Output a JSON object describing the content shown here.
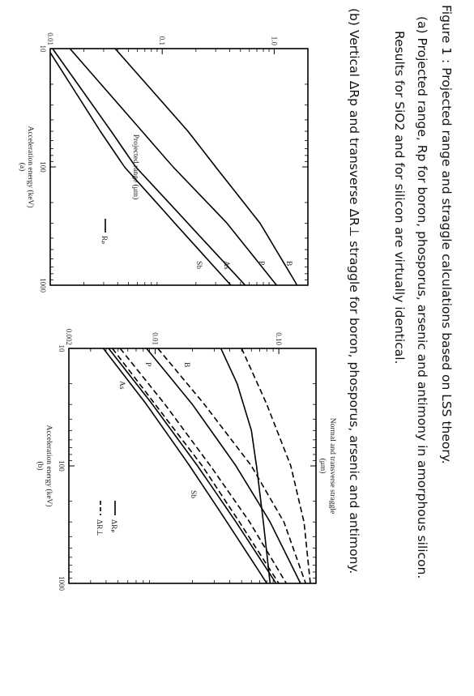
{
  "caption": {
    "title": "Figure 1 : Projected range and straggle calculations based on LSS theory.",
    "item_a_line1": "(a)  Projected range, Rp for boron, phosporus, arsenic and antimony in amorphous silicon.",
    "item_a_line2": "Results for SiO2 and for silicon are virtually identical.",
    "item_b": "(b) Vertical ΔRp and transverse ΔR⊥ straggle for boron, phosporus, arsenic and antimony."
  },
  "chart_data": [
    {
      "type": "line",
      "panel_label": "(a)",
      "xlabel": "Acceleration energy (keV)",
      "ylabel": "Projected range (μm)",
      "xscale": "log",
      "yscale": "log",
      "xlim": [
        10,
        1000
      ],
      "ylim": [
        0.01,
        2
      ],
      "xticks": [
        "10",
        "100",
        "1000"
      ],
      "yticks": [
        "0.01",
        "0.1",
        "1.0"
      ],
      "legend": {
        "label": "Rₚ",
        "line": "solid",
        "placement": "bottom-right"
      },
      "series": [
        {
          "name": "B",
          "x": [
            10,
            50,
            100,
            300,
            1000
          ],
          "y": [
            0.038,
            0.17,
            0.3,
            0.75,
            1.6
          ]
        },
        {
          "name": "P",
          "x": [
            10,
            50,
            100,
            300,
            1000
          ],
          "y": [
            0.015,
            0.066,
            0.125,
            0.38,
            1.05
          ]
        },
        {
          "name": "As",
          "x": [
            10,
            50,
            100,
            300,
            1000
          ],
          "y": [
            0.0105,
            0.035,
            0.058,
            0.17,
            0.55
          ]
        },
        {
          "name": "Sb",
          "x": [
            10,
            50,
            100,
            300,
            1000
          ],
          "y": [
            0.0095,
            0.028,
            0.046,
            0.13,
            0.41
          ]
        }
      ]
    },
    {
      "type": "line",
      "panel_label": "(b)",
      "xlabel": "Acceleration energy (keV)",
      "ylabel": "Normal and transverse straggle",
      "ylabel_unit": "(μm)",
      "xscale": "log",
      "yscale": "log",
      "xlim": [
        10,
        1000
      ],
      "ylim": [
        0.002,
        0.2
      ],
      "xticks": [
        "10",
        "100",
        "1000"
      ],
      "yticks": [
        "0.002",
        "0.01",
        "0.10"
      ],
      "legend": [
        {
          "label": "ΔRₚ",
          "line": "solid"
        },
        {
          "label": "ΔR⊥",
          "line": "dashed"
        }
      ],
      "series": [
        {
          "name": "B",
          "kind": "ΔRₚ",
          "x": [
            10,
            20,
            50,
            100,
            300,
            1000
          ],
          "y": [
            0.034,
            0.046,
            0.06,
            0.066,
            0.075,
            0.085
          ]
        },
        {
          "name": "B",
          "kind": "ΔR⊥",
          "x": [
            10,
            30,
            100,
            300,
            1000
          ],
          "y": [
            0.05,
            0.08,
            0.125,
            0.16,
            0.18
          ]
        },
        {
          "name": "P",
          "kind": "ΔRₚ",
          "x": [
            10,
            30,
            100,
            300,
            1000
          ],
          "y": [
            0.0085,
            0.02,
            0.045,
            0.085,
            0.15
          ]
        },
        {
          "name": "P",
          "kind": "ΔR⊥",
          "x": [
            10,
            30,
            100,
            300,
            1000
          ],
          "y": [
            0.0105,
            0.025,
            0.06,
            0.11,
            0.165
          ]
        },
        {
          "name": "As",
          "kind": "ΔRₚ",
          "x": [
            10,
            30,
            100,
            300,
            1000
          ],
          "y": [
            0.0042,
            0.0095,
            0.022,
            0.045,
            0.095
          ]
        },
        {
          "name": "As",
          "kind": "ΔR⊥",
          "x": [
            10,
            30,
            100,
            300,
            1000
          ],
          "y": [
            0.0052,
            0.012,
            0.028,
            0.058,
            0.115
          ]
        },
        {
          "name": "Sb",
          "kind": "ΔRₚ",
          "x": [
            10,
            30,
            100,
            300,
            1000
          ],
          "y": [
            0.0038,
            0.0085,
            0.019,
            0.038,
            0.08
          ]
        },
        {
          "name": "Sb",
          "kind": "ΔR⊥",
          "x": [
            10,
            30,
            100,
            300,
            1000
          ],
          "y": [
            0.0045,
            0.01,
            0.024,
            0.048,
            0.1
          ]
        }
      ]
    }
  ]
}
